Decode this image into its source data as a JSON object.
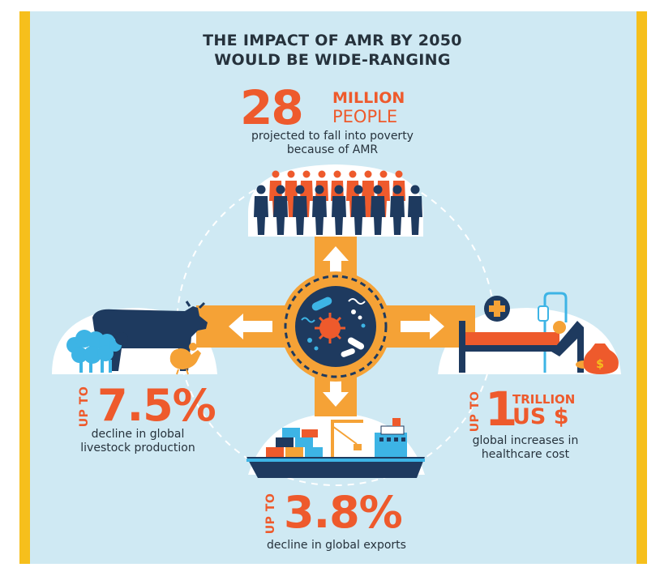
{
  "title": {
    "line1": "THE IMPACT OF AMR BY 2050",
    "line2": "WOULD BE WIDE-RANGING"
  },
  "people": {
    "value": "28",
    "unit_line1": "MILLION",
    "unit_line2": "PEOPLE",
    "desc_line1": "projected to fall into poverty",
    "desc_line2": "because of AMR"
  },
  "livestock": {
    "prefix": "UP TO",
    "value": "7.5%",
    "desc_line1": "decline in global",
    "desc_line2": "livestock production"
  },
  "healthcare": {
    "prefix": "UP TO",
    "value": "1",
    "unit_line1": "TRILLION",
    "unit_line2": "US $",
    "desc_line1": "global increases in",
    "desc_line2": "healthcare cost"
  },
  "exports": {
    "prefix": "UP TO",
    "value": "3.8%",
    "desc": "decline in global exports"
  },
  "icons": {
    "center": "bacteria-virus-icon",
    "top": "people-crowd-icon",
    "left": "livestock-cow-sheep-chicken-icon",
    "right": "hospital-bed-icon",
    "bottom": "cargo-ship-icon",
    "money": "money-bag-icon"
  },
  "colors": {
    "accent": "#ee5a2c",
    "orange": "#f5a236",
    "navy": "#1e3a5f",
    "background": "#cfe9f3",
    "border": "#f6bf1c",
    "text": "#26323c"
  }
}
